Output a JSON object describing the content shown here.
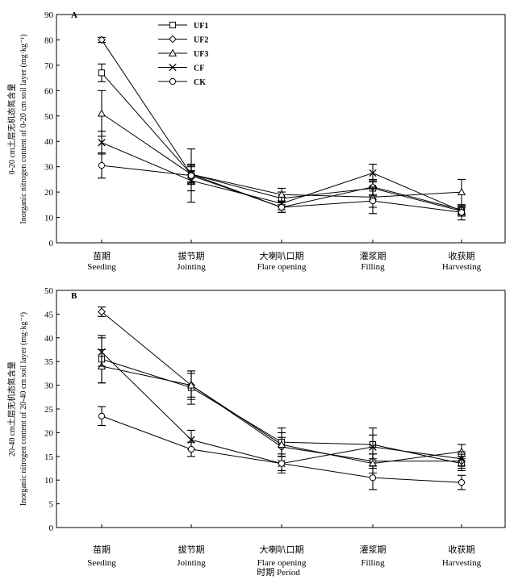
{
  "figure": {
    "xlabel": "时期 Period"
  },
  "chart_data": [
    {
      "type": "line",
      "panel_label": "A",
      "ylabel_cn": "0-20 cm土层无机态氮含量",
      "ylabel_en": "Inorganic nitrogen content of 0-20 cm soil layer (mg·kg⁻¹)",
      "categories_cn": [
        "苗期",
        "拔节期",
        "大喇叭口期",
        "灌浆期",
        "收获期"
      ],
      "categories_en": [
        "Seeding",
        "Jointing",
        "Flare opening",
        "Filling",
        "Harvesting"
      ],
      "ylim": [
        0,
        90
      ],
      "yticks": [
        0,
        10,
        20,
        30,
        40,
        50,
        60,
        70,
        80,
        90
      ],
      "legend_position": "top-center",
      "series": [
        {
          "name": "UF1",
          "marker": "square",
          "values": [
            67,
            27,
            17.5,
            21.5,
            12.5
          ],
          "errors": [
            3.5,
            3,
            2.5,
            3,
            1.5
          ]
        },
        {
          "name": "UF2",
          "marker": "diamond",
          "values": [
            80,
            27,
            14,
            22,
            13
          ],
          "errors": [
            1,
            4,
            2,
            3,
            1.5
          ]
        },
        {
          "name": "UF3",
          "marker": "triangle",
          "values": [
            51,
            27,
            19,
            18,
            20
          ],
          "errors": [
            9,
            3.5,
            2.5,
            4,
            5
          ]
        },
        {
          "name": "CF",
          "marker": "x",
          "values": [
            39.5,
            24.5,
            15.5,
            27.5,
            12.5
          ],
          "errors": [
            4.5,
            4,
            2.5,
            3.5,
            2
          ]
        },
        {
          "name": "CK",
          "marker": "circle",
          "values": [
            30.5,
            26.5,
            14,
            16.5,
            12
          ],
          "errors": [
            5,
            10.5,
            2,
            5,
            3
          ]
        }
      ]
    },
    {
      "type": "line",
      "panel_label": "B",
      "ylabel_cn": "20-40 cm土层无机态氮含量",
      "ylabel_en": "Inorganic nitrogen content of 20-40 cm soil layer (mg·kg⁻¹)",
      "categories_cn": [
        "苗期",
        "拔节期",
        "大喇叭口期",
        "灌浆期",
        "收获期"
      ],
      "categories_en": [
        "Seeding",
        "Jointing",
        "Flare opening",
        "Filling",
        "Harvesting"
      ],
      "ylim": [
        0,
        50
      ],
      "yticks": [
        0,
        5,
        10,
        15,
        20,
        25,
        30,
        35,
        40,
        45,
        50
      ],
      "series": [
        {
          "name": "UF1",
          "marker": "square",
          "values": [
            35.5,
            29.5,
            18,
            17.5,
            13.5
          ],
          "errors": [
            5,
            3.5,
            3,
            3.5,
            1.5
          ]
        },
        {
          "name": "UF2",
          "marker": "diamond",
          "values": [
            45.5,
            30,
            17,
            14,
            14
          ],
          "errors": [
            1,
            2.5,
            2,
            1.5,
            1.5
          ]
        },
        {
          "name": "UF3",
          "marker": "triangle",
          "values": [
            34,
            30,
            17.5,
            13.5,
            16
          ],
          "errors": [
            3.5,
            3,
            2.5,
            2,
            1.5
          ]
        },
        {
          "name": "CF",
          "marker": "x",
          "values": [
            37,
            18.5,
            13.5,
            17,
            14.5
          ],
          "errors": [
            3,
            2,
            1.5,
            2.5,
            1.5
          ]
        },
        {
          "name": "CK",
          "marker": "circle",
          "values": [
            23.5,
            16.5,
            13.5,
            10.5,
            9.5
          ],
          "errors": [
            2,
            1.5,
            2,
            2.5,
            1.5
          ]
        }
      ]
    }
  ]
}
